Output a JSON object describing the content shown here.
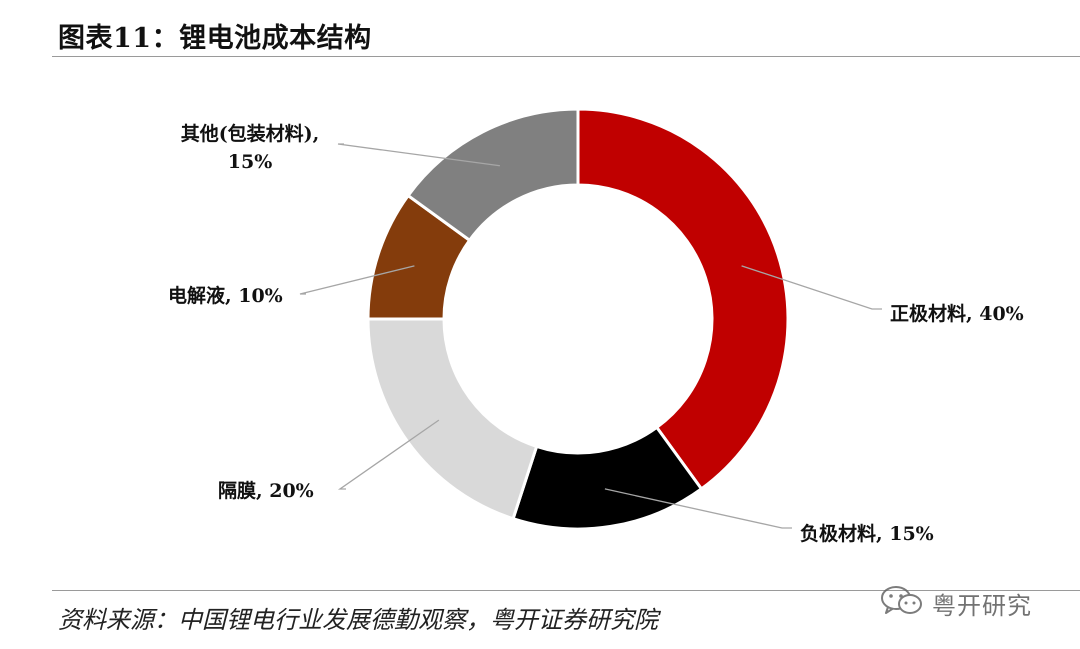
{
  "header": {
    "title": "图表11：锂电池成本结构"
  },
  "chart_data": {
    "type": "pie",
    "style": "donut",
    "slices": [
      {
        "label": "正极材料, 40%",
        "value": 40,
        "color": "#C00000"
      },
      {
        "label": "负极材料, 15%",
        "value": 15,
        "color": "#000000"
      },
      {
        "label": "隔膜, 20%",
        "value": 20,
        "color": "#D9D9D9"
      },
      {
        "label": "电解液, 10%",
        "value": 10,
        "color": "#843C0C"
      },
      {
        "label": "其他(包装材料),\n15%",
        "value": 15,
        "color": "#808080"
      }
    ],
    "start": "12 o'clock",
    "direction": "clockwise",
    "legend": "none (callout labels)"
  },
  "footer": {
    "source": "资料来源：中国锂电行业发展德勤观察，粤开证券研究院",
    "watermark_icon": "wechat-icon",
    "watermark_text": "粤开研究"
  }
}
